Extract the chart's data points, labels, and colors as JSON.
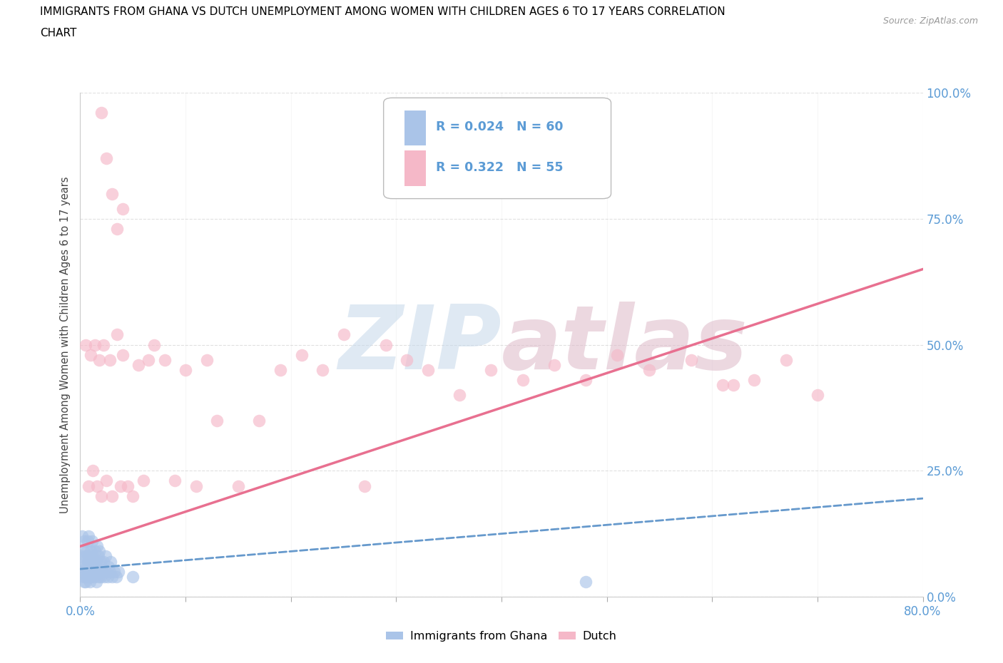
{
  "title_line1": "IMMIGRANTS FROM GHANA VS DUTCH UNEMPLOYMENT AMONG WOMEN WITH CHILDREN AGES 6 TO 17 YEARS CORRELATION",
  "title_line2": "CHART",
  "source": "Source: ZipAtlas.com",
  "ylabel": "Unemployment Among Women with Children Ages 6 to 17 years",
  "xlim": [
    0.0,
    0.8
  ],
  "ylim": [
    0.0,
    1.0
  ],
  "ghana_R": 0.024,
  "ghana_N": 60,
  "dutch_R": 0.322,
  "dutch_N": 55,
  "ghana_color": "#aac4e8",
  "dutch_color": "#f5b8c8",
  "ghana_line_color": "#6699cc",
  "dutch_line_color": "#e87090",
  "tick_color": "#5b9bd5",
  "grid_color": "#cccccc",
  "wm_zip_color": "#c5d8ea",
  "wm_atlas_color": "#ddb8c8",
  "ghana_x": [
    0.001,
    0.002,
    0.002,
    0.003,
    0.003,
    0.003,
    0.004,
    0.004,
    0.004,
    0.005,
    0.005,
    0.005,
    0.006,
    0.006,
    0.006,
    0.007,
    0.007,
    0.007,
    0.008,
    0.008,
    0.008,
    0.009,
    0.009,
    0.01,
    0.01,
    0.01,
    0.011,
    0.011,
    0.012,
    0.012,
    0.013,
    0.013,
    0.014,
    0.014,
    0.015,
    0.015,
    0.016,
    0.016,
    0.017,
    0.017,
    0.018,
    0.018,
    0.019,
    0.019,
    0.02,
    0.021,
    0.022,
    0.023,
    0.024,
    0.025,
    0.026,
    0.027,
    0.028,
    0.029,
    0.03,
    0.032,
    0.034,
    0.036,
    0.05,
    0.48
  ],
  "ghana_y": [
    0.08,
    0.12,
    0.05,
    0.04,
    0.06,
    0.09,
    0.03,
    0.07,
    0.11,
    0.05,
    0.08,
    0.03,
    0.06,
    0.09,
    0.04,
    0.07,
    0.11,
    0.05,
    0.04,
    0.08,
    0.12,
    0.03,
    0.07,
    0.05,
    0.09,
    0.04,
    0.07,
    0.11,
    0.05,
    0.08,
    0.04,
    0.07,
    0.05,
    0.09,
    0.03,
    0.07,
    0.05,
    0.1,
    0.04,
    0.08,
    0.05,
    0.09,
    0.04,
    0.07,
    0.06,
    0.05,
    0.07,
    0.04,
    0.08,
    0.05,
    0.04,
    0.06,
    0.05,
    0.07,
    0.04,
    0.05,
    0.04,
    0.05,
    0.04,
    0.03
  ],
  "ghana_line_y0": 0.055,
  "ghana_line_y1": 0.195,
  "dutch_x": [
    0.005,
    0.008,
    0.01,
    0.012,
    0.014,
    0.016,
    0.018,
    0.02,
    0.022,
    0.025,
    0.028,
    0.03,
    0.035,
    0.038,
    0.04,
    0.045,
    0.05,
    0.055,
    0.06,
    0.065,
    0.07,
    0.08,
    0.09,
    0.1,
    0.11,
    0.12,
    0.13,
    0.15,
    0.17,
    0.19,
    0.21,
    0.23,
    0.25,
    0.27,
    0.29,
    0.31,
    0.33,
    0.36,
    0.39,
    0.42,
    0.45,
    0.48,
    0.51,
    0.54,
    0.58,
    0.61,
    0.64,
    0.67,
    0.7,
    0.62,
    0.02,
    0.025,
    0.03,
    0.035,
    0.04
  ],
  "dutch_y": [
    0.5,
    0.22,
    0.48,
    0.25,
    0.5,
    0.22,
    0.47,
    0.2,
    0.5,
    0.23,
    0.47,
    0.2,
    0.52,
    0.22,
    0.48,
    0.22,
    0.2,
    0.46,
    0.23,
    0.47,
    0.5,
    0.47,
    0.23,
    0.45,
    0.22,
    0.47,
    0.35,
    0.22,
    0.35,
    0.45,
    0.48,
    0.45,
    0.52,
    0.22,
    0.5,
    0.47,
    0.45,
    0.4,
    0.45,
    0.43,
    0.46,
    0.43,
    0.48,
    0.45,
    0.47,
    0.42,
    0.43,
    0.47,
    0.4,
    0.42,
    0.96,
    0.87,
    0.8,
    0.73,
    0.77
  ],
  "dutch_line_y0": 0.1,
  "dutch_line_y1": 0.65
}
